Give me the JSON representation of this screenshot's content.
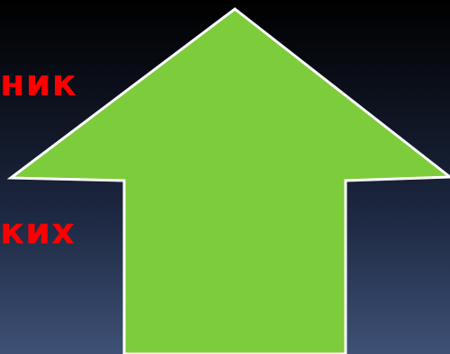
{
  "slide": {
    "text_lines": [
      "ник",
      "ких"
    ],
    "arrow": {
      "direction": "up",
      "fill": "#7dcc3b",
      "stroke": "#ffffff"
    },
    "text_color": "#ff0000",
    "background": [
      "#000000",
      "#3e5175"
    ]
  }
}
